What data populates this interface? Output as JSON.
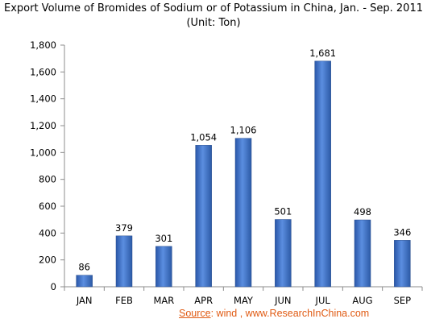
{
  "chart_data": {
    "type": "bar",
    "title": "Export Volume of Bromides of Sodium or of Potassium in China, Jan. - Sep. 2011",
    "subtitle": "(Unit: Ton)",
    "categories": [
      "JAN",
      "FEB",
      "MAR",
      "APR",
      "MAY",
      "JUN",
      "JUL",
      "AUG",
      "SEP"
    ],
    "values": [
      86,
      379,
      301,
      1054,
      1106,
      501,
      1681,
      498,
      346
    ],
    "value_labels": [
      "86",
      "379",
      "301",
      "1,054",
      "1,106",
      "501",
      "1,681",
      "498",
      "346"
    ],
    "ylim": [
      0,
      1800
    ],
    "yticks": [
      0,
      200,
      400,
      600,
      800,
      1000,
      1200,
      1400,
      1600,
      1800
    ],
    "ytick_labels": [
      "0",
      "200",
      "400",
      "600",
      "800",
      "1,000",
      "1,200",
      "1,400",
      "1,600",
      "1,800"
    ],
    "xlabel": "",
    "ylabel": "",
    "grid": false,
    "bar_color": "#3a6fc4"
  },
  "source": {
    "label": "Source",
    "text": ": wind , www.ResearchInChina.com",
    "color": "#e05a12"
  }
}
